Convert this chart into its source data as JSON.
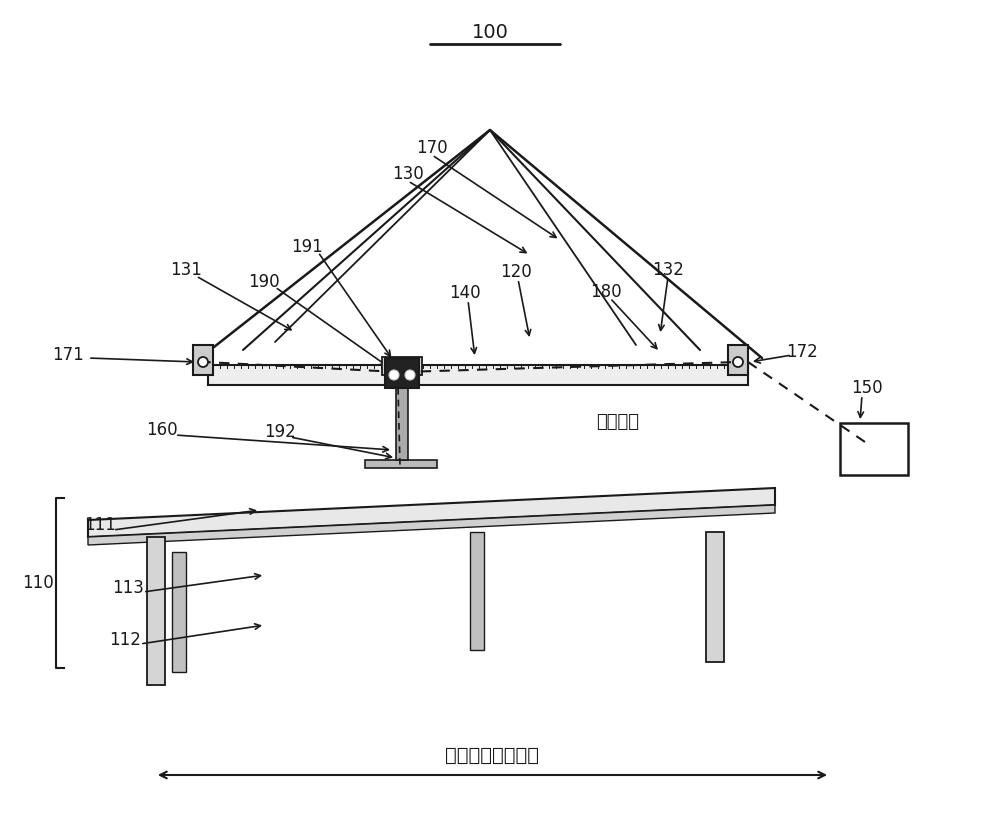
{
  "bg_color": "#ffffff",
  "line_color": "#1a1a1a",
  "bottom_label": "进纸口的宽度方向",
  "comm_label": "通信连接"
}
